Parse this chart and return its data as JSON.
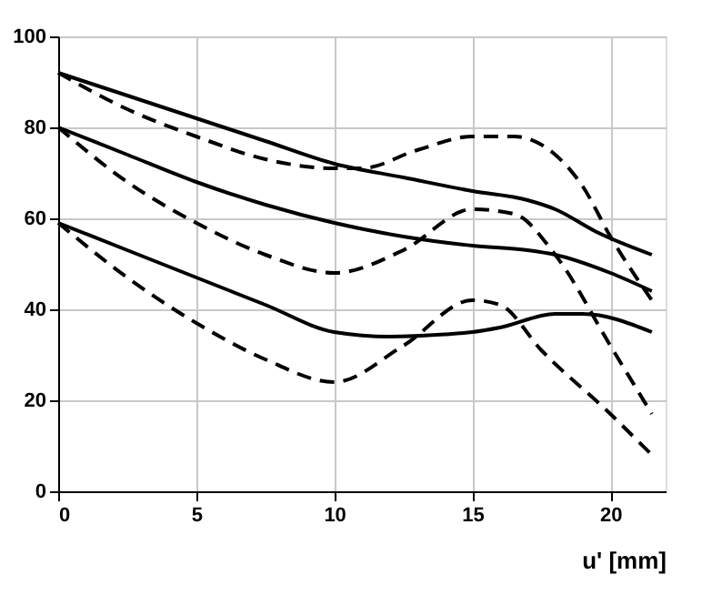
{
  "chart_data": {
    "type": "line",
    "xlabel": "u' [mm]",
    "xlim": [
      0,
      22
    ],
    "xticks": [
      0,
      5,
      10,
      15,
      20
    ],
    "ylim": [
      0,
      100
    ],
    "yticks": [
      0,
      20,
      40,
      60,
      80,
      100
    ],
    "grid": true,
    "marker": "none",
    "series": [
      {
        "color": "#000000",
        "line_style": "solid",
        "x": [
          0,
          2.5,
          5,
          7.5,
          10,
          12.5,
          15,
          17,
          18,
          19.5,
          21.5
        ],
        "values": [
          92,
          87,
          82,
          77,
          72,
          69,
          66,
          64,
          62,
          57,
          52
        ]
      },
      {
        "color": "#000000",
        "line_style": "dashed",
        "x": [
          0,
          2.5,
          5,
          7.5,
          10,
          11,
          13,
          15,
          16.5,
          18,
          19,
          20,
          21.5
        ],
        "values": [
          92,
          84,
          78,
          73,
          71,
          71,
          75,
          78,
          78,
          74,
          67,
          56,
          42
        ]
      },
      {
        "color": "#000000",
        "line_style": "solid",
        "x": [
          0,
          2.5,
          5,
          7.5,
          10,
          12.5,
          15,
          17,
          18,
          20,
          21.5
        ],
        "values": [
          80,
          74,
          68,
          63,
          59,
          56,
          54,
          53,
          52,
          48,
          44
        ]
      },
      {
        "color": "#000000",
        "line_style": "dashed",
        "x": [
          0,
          2.5,
          5,
          7.5,
          10,
          12.5,
          15,
          16.5,
          18,
          20,
          21.5
        ],
        "values": [
          80,
          68,
          59,
          52,
          48,
          53,
          62,
          61,
          52,
          32,
          17
        ]
      },
      {
        "color": "#000000",
        "line_style": "solid",
        "x": [
          0,
          2.5,
          5,
          7.5,
          10,
          12,
          14,
          15,
          16,
          18,
          19,
          21.5
        ],
        "values": [
          59,
          53,
          47,
          41,
          35,
          34,
          34.5,
          35,
          36,
          39,
          39,
          35
        ]
      },
      {
        "color": "#000000",
        "line_style": "dashed",
        "x": [
          0,
          2.5,
          5,
          7.5,
          10,
          12.5,
          15,
          16,
          17.5,
          20,
          21.5
        ],
        "values": [
          59,
          47,
          37,
          29,
          24,
          32,
          42,
          41,
          31,
          17,
          8
        ]
      }
    ]
  }
}
